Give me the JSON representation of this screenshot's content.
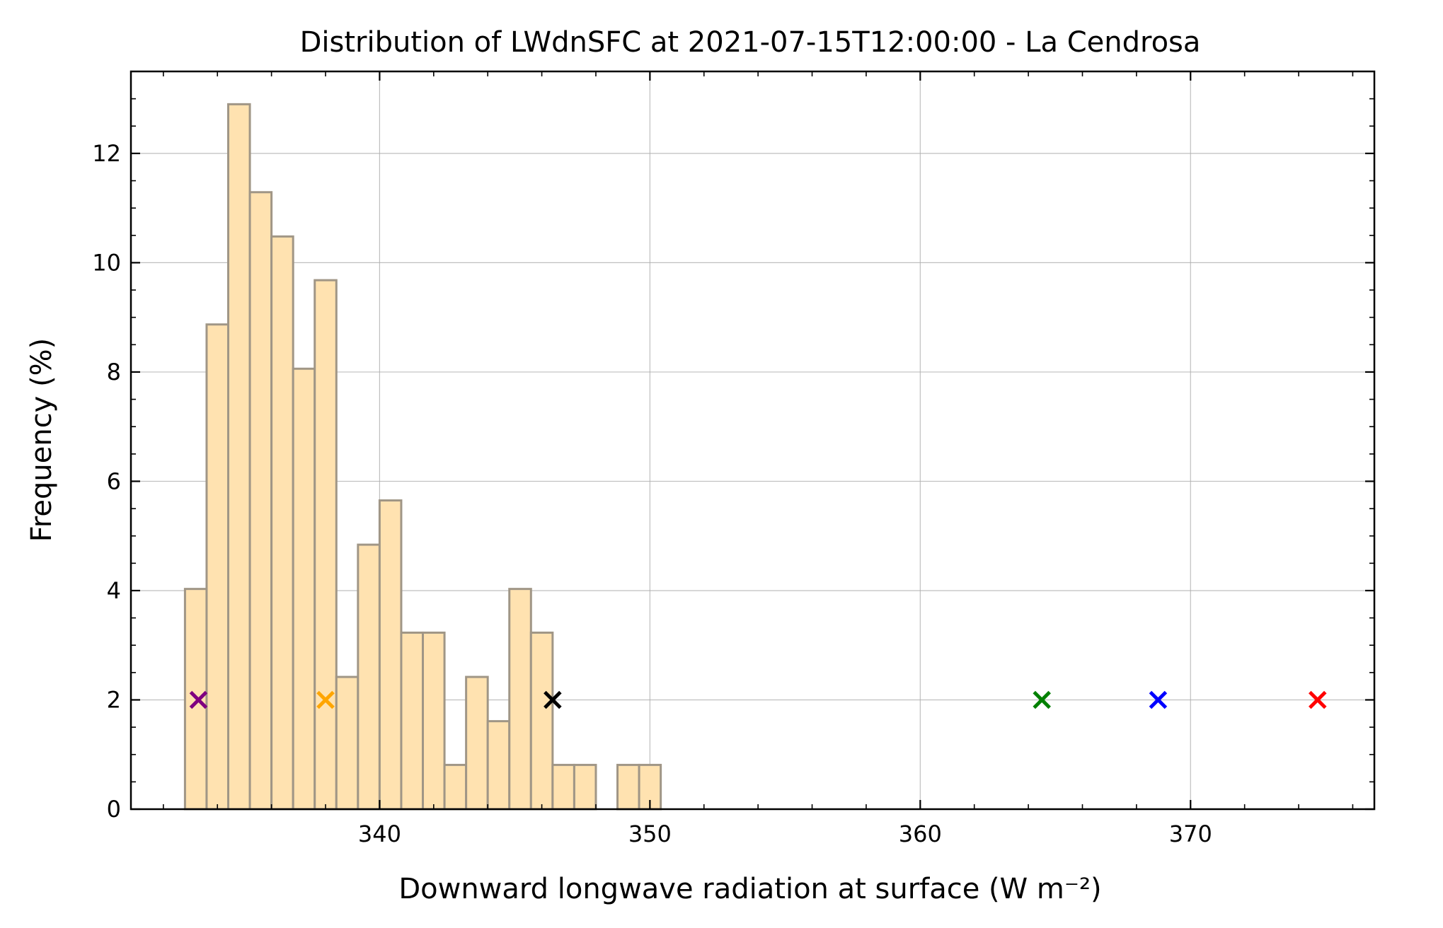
{
  "chart_data": {
    "type": "bar",
    "title": "Distribution of LWdnSFC at 2021-07-15T12:00:00 - La Cendrosa",
    "xlabel": "Downward longwave radiation at surface (W m⁻²)",
    "ylabel": "Frequency (%)",
    "xlim": [
      330.8,
      376.8
    ],
    "ylim": [
      0,
      13.5
    ],
    "x_ticks": [
      340,
      350,
      360,
      370
    ],
    "y_ticks": [
      0,
      2,
      4,
      6,
      8,
      10,
      12
    ],
    "x_minor_step": 2,
    "y_minor_step": 0.5,
    "grid": true,
    "bin_width": 0.8,
    "bins": [
      {
        "start": 332.8,
        "value": 4.03
      },
      {
        "start": 333.6,
        "value": 8.87
      },
      {
        "start": 334.4,
        "value": 12.9
      },
      {
        "start": 335.2,
        "value": 11.29
      },
      {
        "start": 336.0,
        "value": 10.48
      },
      {
        "start": 336.8,
        "value": 8.06
      },
      {
        "start": 337.6,
        "value": 9.68
      },
      {
        "start": 338.4,
        "value": 2.42
      },
      {
        "start": 339.2,
        "value": 4.84
      },
      {
        "start": 340.0,
        "value": 5.65
      },
      {
        "start": 340.8,
        "value": 3.23
      },
      {
        "start": 341.6,
        "value": 3.23
      },
      {
        "start": 342.4,
        "value": 0.81
      },
      {
        "start": 343.2,
        "value": 2.42
      },
      {
        "start": 344.0,
        "value": 1.61
      },
      {
        "start": 344.8,
        "value": 4.03
      },
      {
        "start": 345.6,
        "value": 3.23
      },
      {
        "start": 346.4,
        "value": 0.81
      },
      {
        "start": 347.2,
        "value": 0.81
      },
      {
        "start": 348.0,
        "value": 0.0
      },
      {
        "start": 348.8,
        "value": 0.81
      },
      {
        "start": 349.6,
        "value": 0.81
      }
    ],
    "markers": [
      {
        "x": 333.3,
        "y": 2,
        "color": "#800080"
      },
      {
        "x": 338.0,
        "y": 2,
        "color": "#ffa500"
      },
      {
        "x": 346.4,
        "y": 2,
        "color": "#000000"
      },
      {
        "x": 364.5,
        "y": 2,
        "color": "#008000"
      },
      {
        "x": 368.8,
        "y": 2,
        "color": "#0000ff"
      },
      {
        "x": 374.7,
        "y": 2,
        "color": "#ff0000"
      }
    ],
    "bar_fill": "#ffe2b0",
    "bar_edge": "#a09686"
  }
}
